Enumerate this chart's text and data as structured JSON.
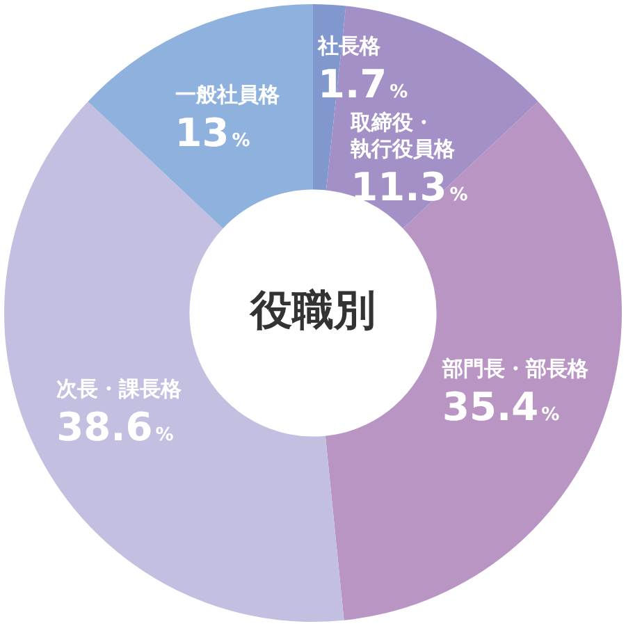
{
  "chart_data": {
    "type": "donut",
    "title": "役職別",
    "categories": [
      "社長格",
      "取締役・執行役員格",
      "部門長・部長格",
      "次長・課長格",
      "一般社員格"
    ],
    "values": [
      1.7,
      11.3,
      35.4,
      38.6,
      13
    ],
    "value_labels": [
      "1.7%",
      "11.3%",
      "35.4%",
      "38.6%",
      "13%"
    ],
    "colors": [
      "#8198cf",
      "#a390c6",
      "#b995c4",
      "#c3bfe1",
      "#8fb1de"
    ],
    "legend": false
  }
}
